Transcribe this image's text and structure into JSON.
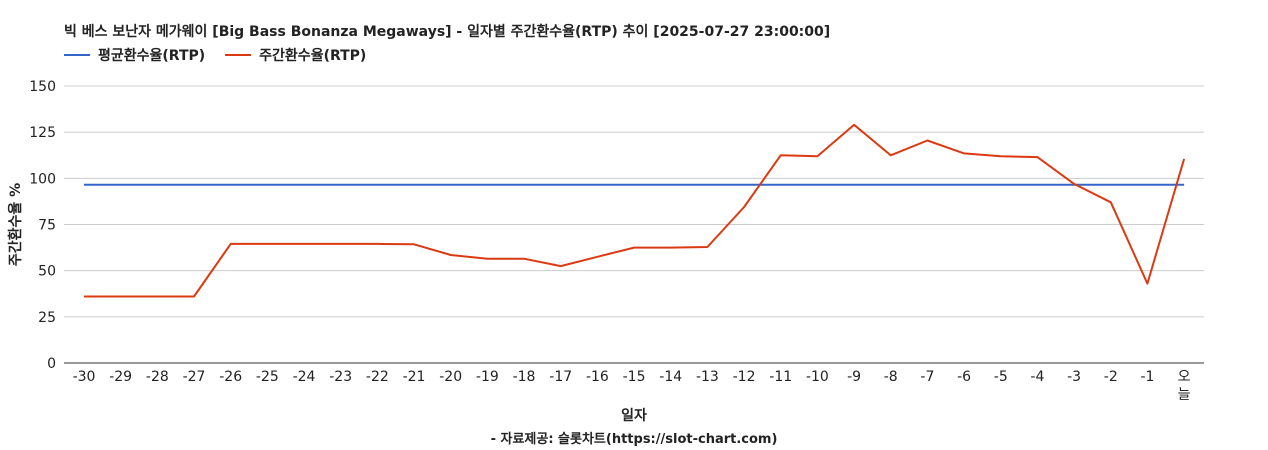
{
  "title": "빅 베스 보난자 메가웨이 [Big Bass Bonanza Megaways] - 일자별 주간환수율(RTP) 추이 [2025-07-27 23:00:00]",
  "source": "- 자료제공: 슬롯차트(https://slot-chart.com)",
  "chart_data": {
    "type": "line",
    "title": "빅 베스 보난자 메가웨이 [Big Bass Bonanza Megaways] - 일자별 주간환수율(RTP) 추이 [2025-07-27 23:00:00]",
    "xlabel": "일자",
    "ylabel": "주간환수율 %",
    "categories": [
      "-30",
      "-29",
      "-28",
      "-27",
      "-26",
      "-25",
      "-24",
      "-23",
      "-22",
      "-21",
      "-20",
      "-19",
      "-18",
      "-17",
      "-16",
      "-15",
      "-14",
      "-13",
      "-12",
      "-11",
      "-10",
      "-9",
      "-8",
      "-7",
      "-6",
      "-5",
      "-4",
      "-3",
      "-2",
      "-1",
      "오늘"
    ],
    "ylim": [
      0,
      150
    ],
    "yticks": [
      0,
      25,
      50,
      75,
      100,
      125,
      150
    ],
    "grid": true,
    "legend_position": "top-left",
    "series": [
      {
        "name": "평균환수율(RTP)",
        "color": "#3366cc",
        "values": [
          96.5,
          96.5,
          96.5,
          96.5,
          96.5,
          96.5,
          96.5,
          96.5,
          96.5,
          96.5,
          96.5,
          96.5,
          96.5,
          96.5,
          96.5,
          96.5,
          96.5,
          96.5,
          96.5,
          96.5,
          96.5,
          96.5,
          96.5,
          96.5,
          96.5,
          96.5,
          96.5,
          96.5,
          96.5,
          96.5,
          96.5
        ]
      },
      {
        "name": "주간환수율(RTP)",
        "color": "#dc3912",
        "values": [
          36,
          36,
          36,
          36,
          64.5,
          64.5,
          64.5,
          64.5,
          64.5,
          64.3,
          58.5,
          56.5,
          56.5,
          52.5,
          57.5,
          62.5,
          62.5,
          62.8,
          84.5,
          112.5,
          112,
          129,
          112.5,
          120.5,
          113.5,
          112,
          111.5,
          97,
          87,
          43,
          110.5
        ]
      }
    ]
  }
}
